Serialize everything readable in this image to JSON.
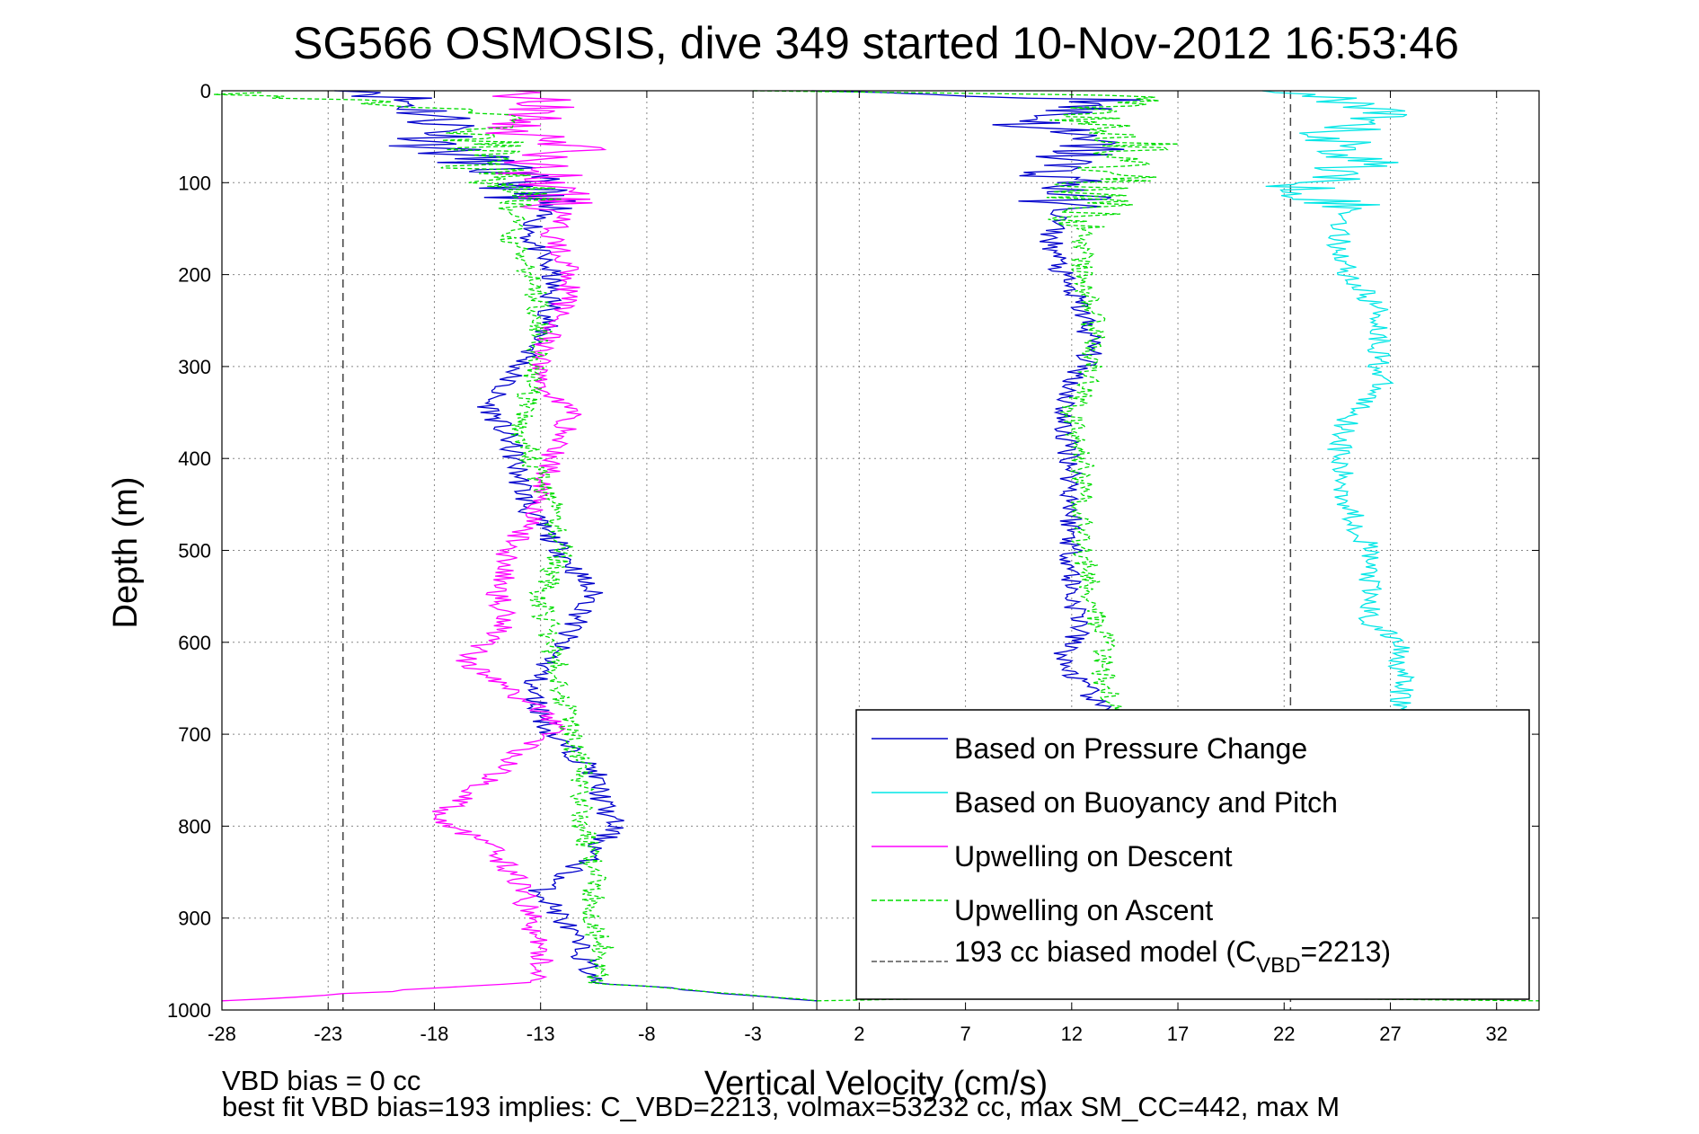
{
  "chart_data": {
    "type": "line",
    "title": "SG566 OSMOSIS, dive 349 started 10-Nov-2012 16:53:46",
    "xlabel": "Vertical Velocity (cm/s)",
    "ylabel": "Depth (m)",
    "xlim": [
      -28,
      34
    ],
    "ylim": [
      1000,
      0
    ],
    "y_reversed": true,
    "grid": true,
    "xticks": [
      -28,
      -23,
      -18,
      -13,
      -8,
      -3,
      2,
      7,
      12,
      17,
      22,
      27,
      32
    ],
    "xtick_labels": [
      "-28",
      "-23",
      "-18",
      "-13",
      "-8",
      "-3",
      "2",
      "7",
      "12",
      "17",
      "22",
      "27",
      "32"
    ],
    "yticks": [
      0,
      100,
      200,
      300,
      400,
      500,
      600,
      700,
      800,
      900,
      1000
    ],
    "ytick_labels": [
      "0",
      "100",
      "200",
      "300",
      "400",
      "500",
      "600",
      "700",
      "800",
      "900",
      "1000"
    ],
    "legend_position": "bottom-right",
    "zero_line": 0,
    "model_lines": [
      -22.3,
      22.3
    ],
    "series": [
      {
        "name": "Based on Pressure Change",
        "color": "#0000cc",
        "dash": "solid",
        "points": [
          [
            [
              -20.5,
              0
            ],
            [
              -18.5,
              20
            ],
            [
              -17,
              40
            ],
            [
              -18,
              60
            ],
            [
              -15.5,
              80
            ],
            [
              -14,
              100
            ],
            [
              -13,
              130
            ],
            [
              -13.5,
              160
            ],
            [
              -12.5,
              200
            ],
            [
              -12.5,
              240
            ],
            [
              -13,
              270
            ],
            [
              -14,
              300
            ],
            [
              -15.5,
              340
            ],
            [
              -14.5,
              380
            ],
            [
              -14,
              420
            ],
            [
              -13.5,
              460
            ],
            [
              -12,
              500
            ],
            [
              -10.5,
              550
            ],
            [
              -12,
              600
            ],
            [
              -13.5,
              650
            ],
            [
              -12.5,
              700
            ],
            [
              -10.5,
              740
            ],
            [
              -10,
              780
            ],
            [
              -9.5,
              800
            ],
            [
              -11,
              840
            ],
            [
              -13,
              870
            ],
            [
              -12,
              900
            ],
            [
              -11,
              940
            ],
            [
              -10.5,
              970
            ],
            [
              0,
              990
            ]
          ],
          [
            [
              0.2,
              0
            ],
            [
              14,
              10
            ],
            [
              10,
              35
            ],
            [
              13,
              60
            ],
            [
              11,
              85
            ],
            [
              12,
              100
            ],
            [
              11.5,
              130
            ],
            [
              11,
              160
            ],
            [
              11.5,
              200
            ],
            [
              12.5,
              240
            ],
            [
              13,
              280
            ],
            [
              12,
              320
            ],
            [
              11.5,
              360
            ],
            [
              12,
              400
            ],
            [
              12,
              450
            ],
            [
              12,
              500
            ],
            [
              12,
              550
            ],
            [
              12.5,
              580
            ],
            [
              11.5,
              620
            ],
            [
              13,
              660
            ],
            [
              13.5,
              680
            ]
          ]
        ]
      },
      {
        "name": "Based on Buoyancy and Pitch",
        "color": "#00e6e6",
        "dash": "solid",
        "points": [
          [
            [
              22.5,
              0
            ],
            [
              26,
              20
            ],
            [
              24,
              50
            ],
            [
              26,
              80
            ],
            [
              23,
              100
            ],
            [
              25,
              130
            ],
            [
              24.5,
              160
            ],
            [
              25,
              200
            ],
            [
              26.5,
              240
            ],
            [
              26.5,
              280
            ],
            [
              26.5,
              320
            ],
            [
              25,
              360
            ],
            [
              24.5,
              400
            ],
            [
              25,
              450
            ],
            [
              26,
              500
            ],
            [
              26,
              550
            ],
            [
              26,
              580
            ],
            [
              27.5,
              600
            ],
            [
              27.5,
              640
            ],
            [
              27.5,
              680
            ]
          ]
        ]
      },
      {
        "name": "Upwelling on Descent",
        "color": "#ff00ff",
        "dash": "solid",
        "points": [
          [
            [
              -14,
              0
            ],
            [
              -12.5,
              20
            ],
            [
              -15,
              40
            ],
            [
              -11.5,
              60
            ],
            [
              -13.5,
              80
            ],
            [
              -12.5,
              100
            ],
            [
              -12,
              130
            ],
            [
              -12.5,
              160
            ],
            [
              -11.5,
              200
            ],
            [
              -12,
              240
            ],
            [
              -13,
              280
            ],
            [
              -13,
              320
            ],
            [
              -11.5,
              350
            ],
            [
              -12.5,
              400
            ],
            [
              -13,
              450
            ],
            [
              -14.5,
              500
            ],
            [
              -15,
              550
            ],
            [
              -14.5,
              580
            ],
            [
              -16.5,
              620
            ],
            [
              -14,
              660
            ],
            [
              -12,
              690
            ],
            [
              -14,
              720
            ],
            [
              -16,
              760
            ],
            [
              -18,
              790
            ],
            [
              -15.5,
              820
            ],
            [
              -14,
              860
            ],
            [
              -13.5,
              900
            ],
            [
              -13,
              940
            ],
            [
              -13,
              970
            ],
            [
              -28,
              990
            ]
          ]
        ]
      },
      {
        "name": "Upwelling on Ascent",
        "color": "#00dd00",
        "dash": "dashed",
        "points": [
          [
            [
              -28,
              2
            ],
            [
              -16,
              20
            ],
            [
              -15.5,
              50
            ],
            [
              -16,
              80
            ],
            [
              -14.5,
              100
            ],
            [
              -14,
              130
            ],
            [
              -14.5,
              160
            ],
            [
              -13.5,
              200
            ],
            [
              -13,
              240
            ],
            [
              -13,
              280
            ],
            [
              -13.5,
              320
            ],
            [
              -14,
              360
            ],
            [
              -13.5,
              400
            ],
            [
              -12.5,
              450
            ],
            [
              -12,
              500
            ],
            [
              -13,
              550
            ],
            [
              -12.5,
              600
            ],
            [
              -12,
              650
            ],
            [
              -11.5,
              700
            ],
            [
              -11,
              760
            ],
            [
              -11,
              800
            ],
            [
              -10.5,
              850
            ],
            [
              -10.5,
              900
            ],
            [
              -10,
              940
            ],
            [
              -10.5,
              970
            ],
            [
              0,
              990
            ],
            [
              12,
              985
            ],
            [
              34,
              990
            ]
          ],
          [
            [
              -3,
              0
            ],
            [
              15,
              5
            ],
            [
              13,
              30
            ],
            [
              15,
              60
            ],
            [
              14,
              90
            ],
            [
              13,
              110
            ],
            [
              12.5,
              150
            ],
            [
              12.5,
              200
            ],
            [
              13,
              250
            ],
            [
              13,
              300
            ],
            [
              12,
              350
            ],
            [
              12.5,
              400
            ],
            [
              12.5,
              450
            ],
            [
              12.5,
              500
            ],
            [
              13,
              550
            ],
            [
              13.5,
              600
            ],
            [
              13.5,
              640
            ],
            [
              14,
              680
            ]
          ]
        ]
      }
    ]
  },
  "legend": {
    "items": [
      {
        "label": "Based on Pressure Change",
        "color": "#0000cc",
        "dash": "solid"
      },
      {
        "label": "Based on Buoyancy and Pitch",
        "color": "#00e6e6",
        "dash": "solid"
      },
      {
        "label": "Upwelling on Descent",
        "color": "#ff00ff",
        "dash": "solid"
      },
      {
        "label": "Upwelling on Ascent",
        "color": "#00dd00",
        "dash": "dashed"
      },
      {
        "label_prefix": "193 cc biased model (C",
        "label_sub": "VBD",
        "label_suffix": "=2213)",
        "color": "#555555",
        "dash": "dashed"
      }
    ]
  },
  "notes": {
    "line1": "VBD bias = 0 cc",
    "line2": "best fit VBD bias=193 implies: C_VBD=2213, volmax=53232 cc, max SM_CC=442, max M"
  }
}
